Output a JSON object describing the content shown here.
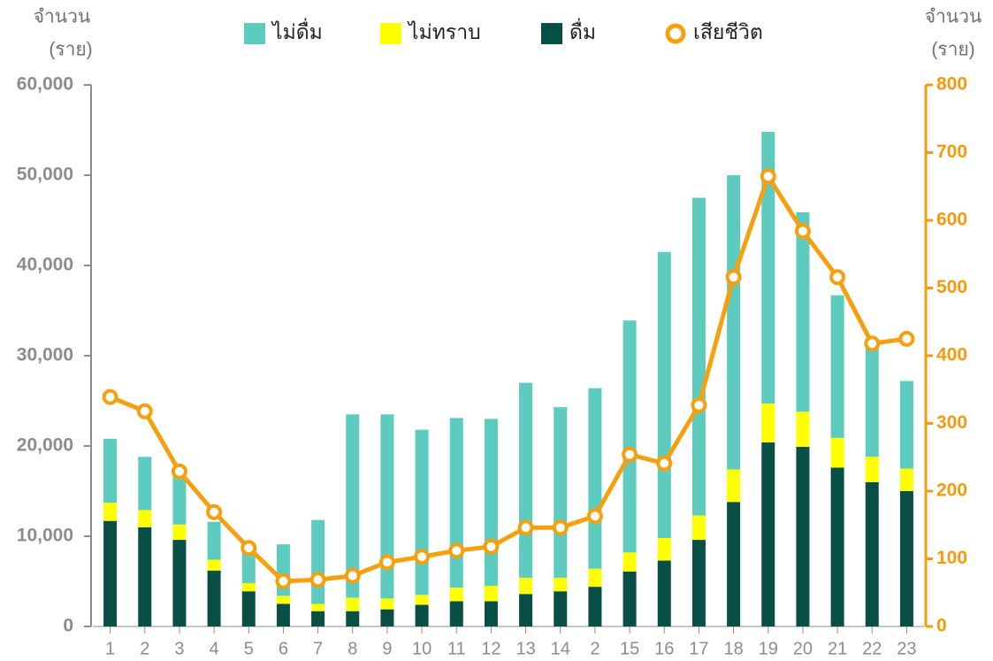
{
  "chart_data": {
    "type": "bar",
    "y_label": [
      "จำนวน",
      "(ราย)"
    ],
    "y2_label": [
      "จำนวน",
      "(ราย)"
    ],
    "categories": [
      "1",
      "2",
      "3",
      "4",
      "5",
      "6",
      "7",
      "8",
      "9",
      "10",
      "11",
      "12",
      "13",
      "14",
      "2",
      "15",
      "16",
      "17",
      "18",
      "19",
      "20",
      "21",
      "22",
      "23"
    ],
    "series": [
      {
        "name": "ไม่ดื่ม",
        "color": "#5ecbbf",
        "values": [
          7100,
          5900,
          5300,
          4200,
          4000,
          5700,
          9300,
          20300,
          20400,
          18300,
          18800,
          18500,
          21600,
          18900,
          20000,
          25700,
          31700,
          35200,
          32600,
          30100,
          22100,
          15800,
          12800,
          9700
        ]
      },
      {
        "name": "ไม่ทราบ",
        "color": "#ffff00",
        "values": [
          2000,
          1900,
          1700,
          1200,
          900,
          900,
          800,
          1500,
          1200,
          1100,
          1500,
          1700,
          1800,
          1500,
          2000,
          2100,
          2500,
          2700,
          3600,
          4300,
          3900,
          3300,
          2800,
          2500
        ]
      },
      {
        "name": "ดื่ม",
        "color": "#0a4f45",
        "values": [
          11700,
          11000,
          9600,
          6200,
          3900,
          2500,
          1700,
          1700,
          1900,
          2400,
          2800,
          2800,
          3600,
          3900,
          4400,
          6100,
          7300,
          9600,
          13800,
          20400,
          19900,
          17600,
          16000,
          15000
        ]
      },
      {
        "name": "เสียชีวิต",
        "color": "#f5a00f",
        "type": "line",
        "axis": "y2",
        "values": [
          339,
          318,
          229,
          169,
          116,
          67,
          69,
          75,
          95,
          103,
          112,
          118,
          146,
          146,
          163,
          254,
          241,
          327,
          516,
          665,
          584,
          516,
          418,
          425
        ]
      }
    ],
    "stacked": true,
    "ylim": [
      0,
      60000
    ],
    "yticks": [
      0,
      {
        "value": 10000,
        "label": "10,000"
      },
      {
        "value": 20000,
        "label": "20,000"
      },
      {
        "value": 30000,
        "label": "30,000"
      },
      {
        "value": 40000,
        "label": "40,000"
      },
      {
        "value": 50000,
        "label": "50,000"
      },
      {
        "value": 60000,
        "label": "60,000"
      }
    ],
    "y2lim": [
      0,
      800
    ],
    "y2ticks": [
      0,
      100,
      200,
      300,
      400,
      500,
      600,
      700,
      800
    ],
    "grid": false,
    "legend": "top"
  }
}
